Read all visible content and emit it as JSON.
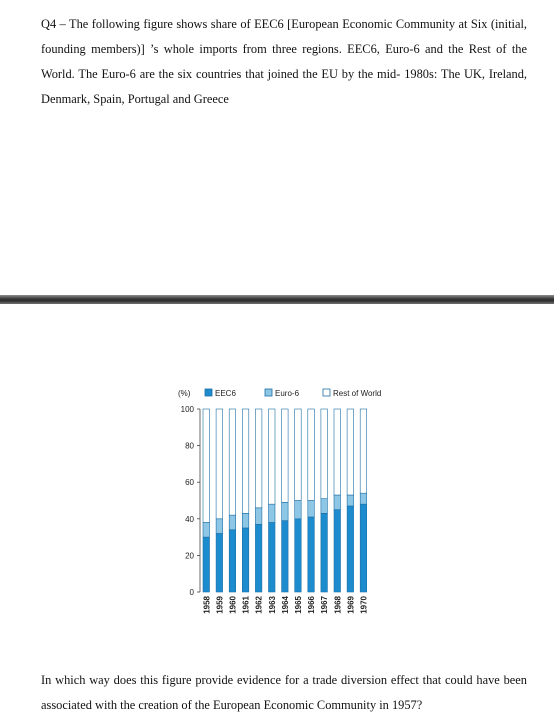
{
  "question": {
    "text": "Q4 – The following figure shows share of EEC6 [European Economic Community at Six (initial, founding members)] ’s whole imports from three regions. EEC6, Euro-6 and the Rest of the World. The Euro-6 are the six countries that joined the EU by the mid- 1980s: The UK, Ireland, Denmark, Spain, Portugal and Greece",
    "followup": "In which way does this figure provide evidence for a trade diversion effect that could have been associated with the creation of the European Economic Community in 1957?"
  },
  "chart_data": {
    "type": "bar",
    "stacked": true,
    "ylabel": "(%)",
    "ylim": [
      0,
      100
    ],
    "yticks": [
      0,
      20,
      40,
      60,
      80,
      100
    ],
    "categories": [
      "1958",
      "1959",
      "1960",
      "1961",
      "1962",
      "1963",
      "1964",
      "1965",
      "1966",
      "1967",
      "1968",
      "1969",
      "1970"
    ],
    "series": [
      {
        "name": "EEC6",
        "color": "#1d8ccf",
        "values": [
          30,
          32,
          34,
          35,
          37,
          38,
          39,
          40,
          41,
          43,
          45,
          47,
          48
        ]
      },
      {
        "name": "Euro-6",
        "color": "#8ec6e6",
        "values": [
          8,
          8,
          8,
          8,
          9,
          10,
          10,
          10,
          9,
          8,
          8,
          6,
          6
        ]
      },
      {
        "name": "Rest of World",
        "color": "#ffffff",
        "values": [
          62,
          60,
          58,
          57,
          54,
          52,
          51,
          50,
          50,
          49,
          47,
          47,
          46
        ]
      }
    ],
    "legend_position": "top"
  }
}
